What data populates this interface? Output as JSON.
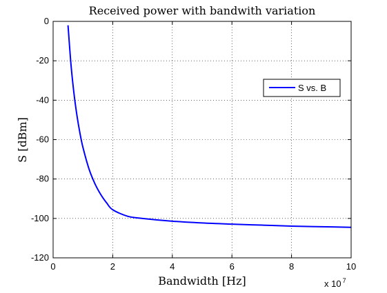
{
  "chart_data": {
    "type": "line",
    "title": "Received power with bandwith variation",
    "xlabel": "Bandwidth [Hz]",
    "ylabel": "S [dBm]",
    "x_multiplier_base": "x 10",
    "x_multiplier_exp": "7",
    "xlim": [
      0,
      100000000
    ],
    "ylim": [
      -120,
      0
    ],
    "x_ticks": [
      0,
      20000000,
      40000000,
      60000000,
      80000000,
      100000000
    ],
    "x_tick_labels": [
      "0",
      "2",
      "4",
      "6",
      "8",
      "10"
    ],
    "y_ticks": [
      0,
      -20,
      -40,
      -60,
      -80,
      -100,
      -120
    ],
    "y_tick_labels": [
      "0",
      "-20",
      "-40",
      "-60",
      "-80",
      "-100",
      "-120"
    ],
    "grid": true,
    "legend_position": "top-right",
    "series": [
      {
        "name": "S vs. B",
        "color": "#0000ff",
        "x": [
          5000000,
          6000000,
          7000000,
          8000000,
          9000000,
          10000000,
          12000000,
          14000000,
          16000000,
          18000000,
          20000000,
          25000000,
          30000000,
          40000000,
          50000000,
          60000000,
          70000000,
          80000000,
          90000000,
          100000000
        ],
        "y": [
          -2,
          -22,
          -36.6,
          -47.8,
          -56.7,
          -63.9,
          -74.7,
          -82.3,
          -87.9,
          -92.2,
          -95.6,
          -98.9,
          -100.0,
          -101.4,
          -102.3,
          -102.9,
          -103.4,
          -103.9,
          -104.2,
          -104.5
        ]
      }
    ]
  }
}
